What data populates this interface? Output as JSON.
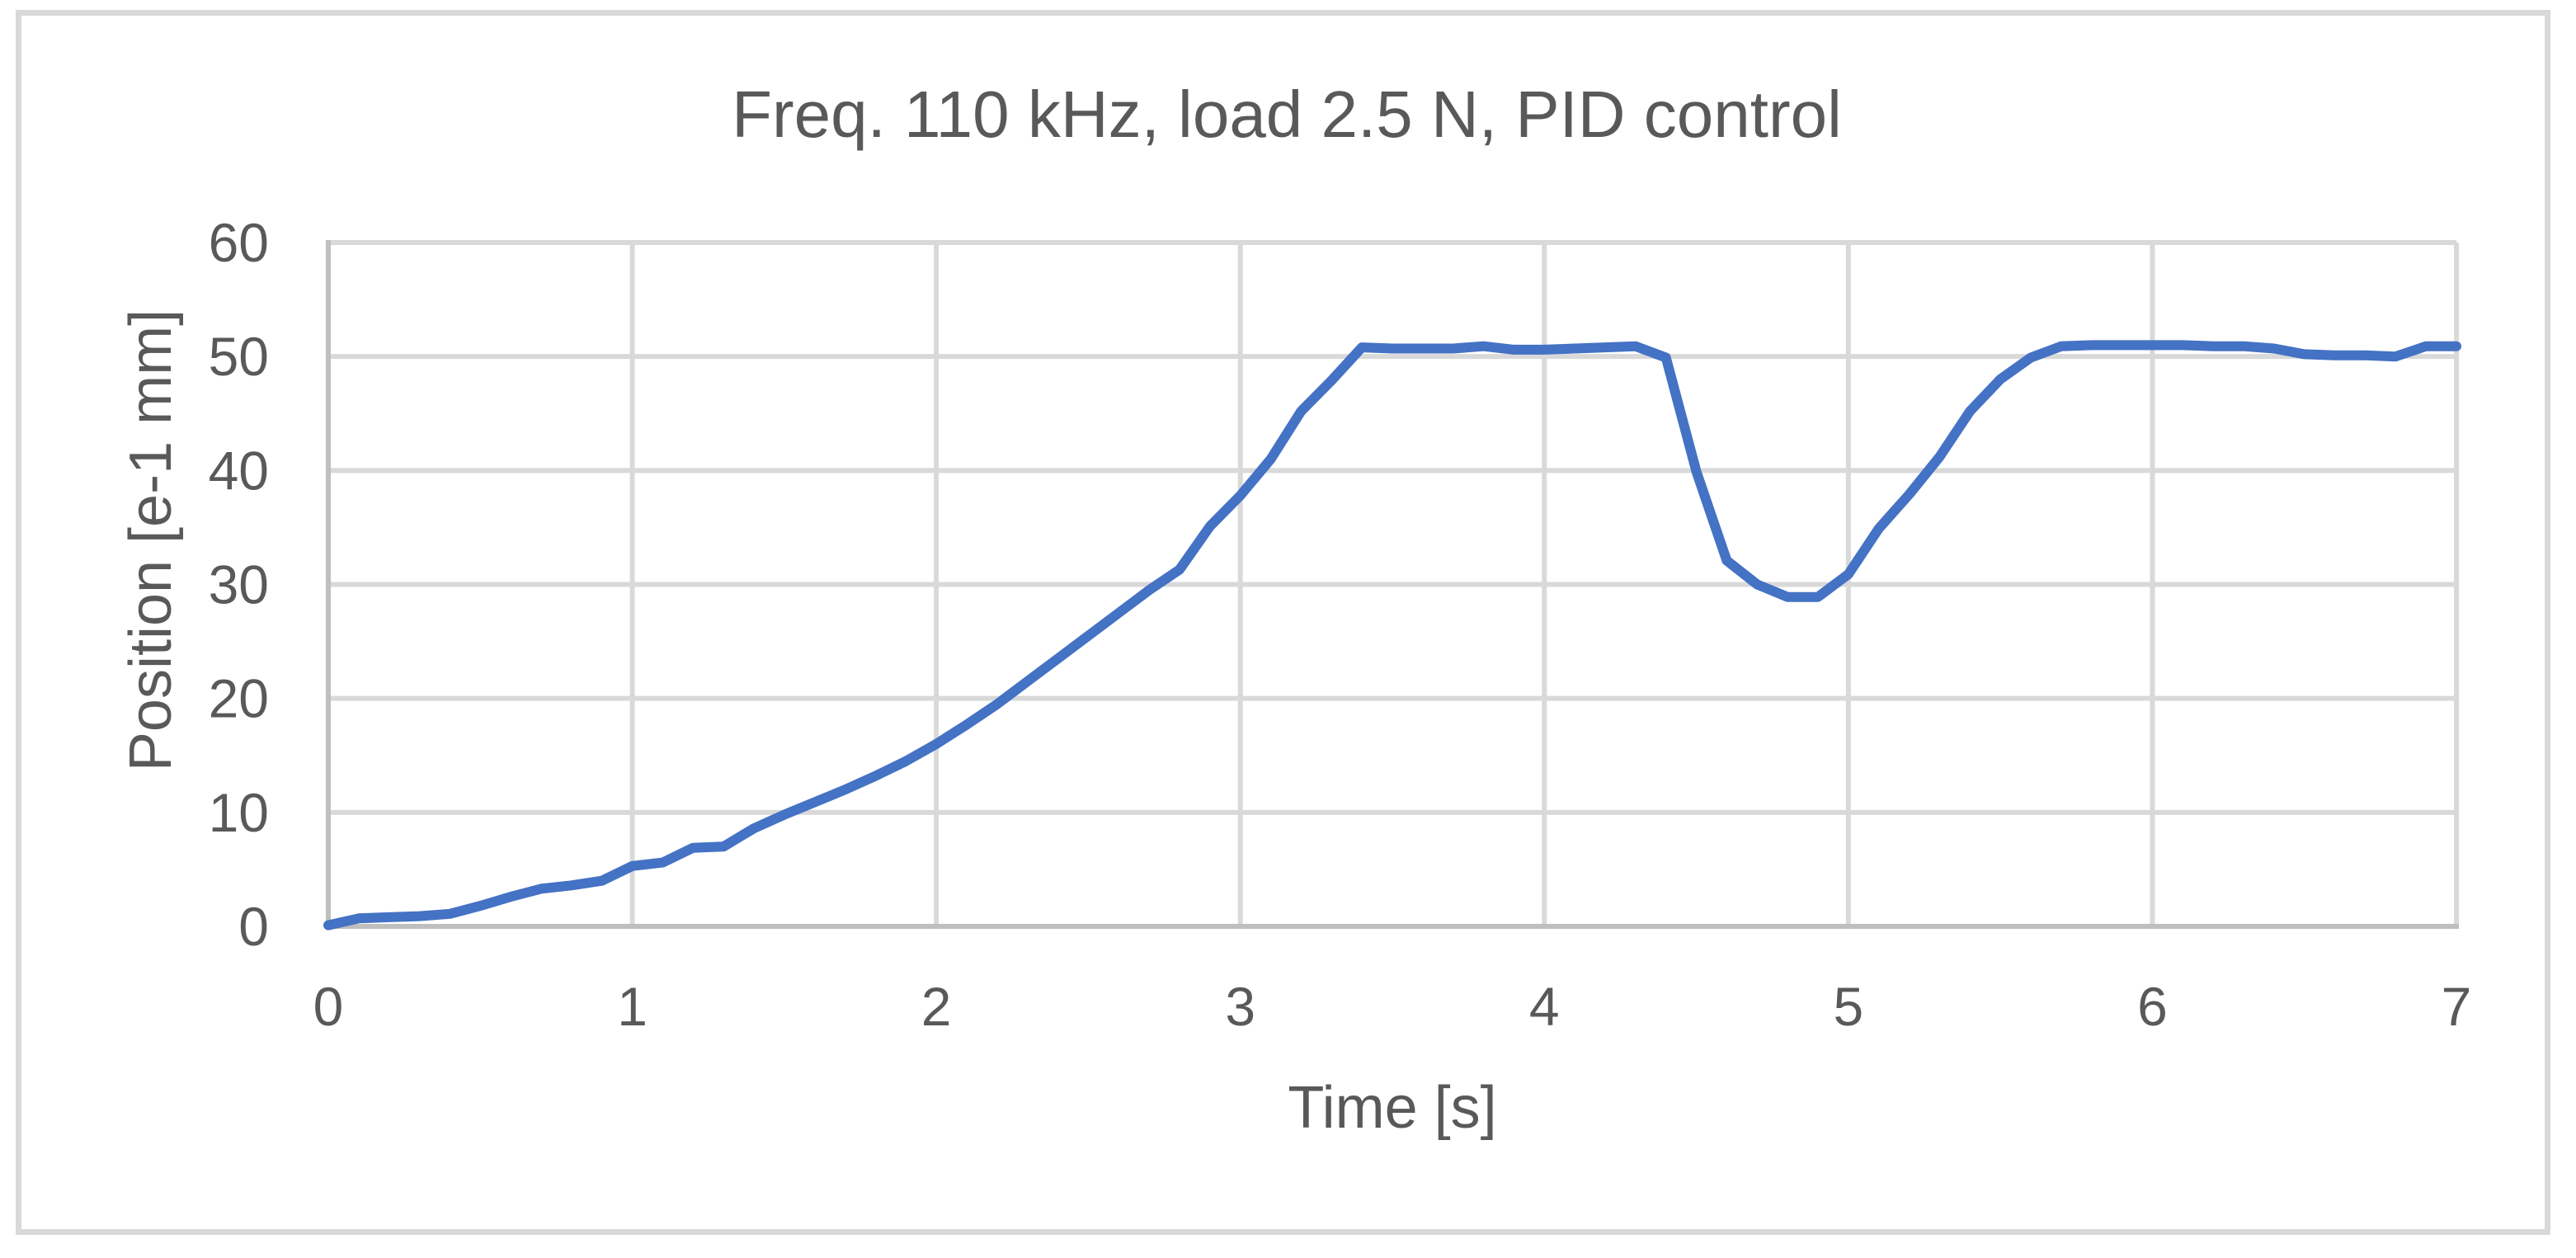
{
  "chart_data": {
    "type": "line",
    "title": "Freq. 110 kHz, load 2.5 N, PID control",
    "xlabel": "Time [s]",
    "ylabel": "Position [e-1 mm]",
    "xlim": [
      0,
      7
    ],
    "ylim": [
      0,
      60
    ],
    "x_ticks": [
      0,
      1,
      2,
      3,
      4,
      5,
      6,
      7
    ],
    "y_ticks": [
      0,
      10,
      20,
      30,
      40,
      50,
      60
    ],
    "grid": true,
    "legend": null,
    "series": [
      {
        "name": "Position",
        "color": "#4472C4",
        "x": [
          0,
          0.1,
          0.2,
          0.3,
          0.4,
          0.5,
          0.6,
          0.7,
          0.8,
          0.9,
          1.0,
          1.1,
          1.2,
          1.3,
          1.4,
          1.5,
          1.6,
          1.7,
          1.8,
          1.9,
          2.0,
          2.1,
          2.2,
          2.3,
          2.4,
          2.5,
          2.6,
          2.7,
          2.8,
          2.9,
          3.0,
          3.1,
          3.2,
          3.3,
          3.4,
          3.5,
          3.6,
          3.7,
          3.8,
          3.9,
          4.0,
          4.1,
          4.2,
          4.3,
          4.4,
          4.5,
          4.6,
          4.7,
          4.8,
          4.9,
          5.0,
          5.1,
          5.2,
          5.3,
          5.4,
          5.5,
          5.6,
          5.7,
          5.8,
          5.9,
          6.0,
          6.1,
          6.2,
          6.3,
          6.4,
          6.5,
          6.6,
          6.7,
          6.8,
          6.9,
          7.0
        ],
        "y": [
          0.1,
          0.7,
          0.8,
          0.9,
          1.1,
          1.8,
          2.6,
          3.3,
          3.6,
          4.0,
          5.3,
          5.6,
          6.9,
          7.0,
          8.6,
          9.8,
          10.9,
          12.0,
          13.2,
          14.5,
          16.0,
          17.7,
          19.5,
          21.5,
          23.5,
          25.5,
          27.5,
          29.5,
          31.3,
          35.1,
          37.8,
          41.0,
          45.2,
          47.9,
          50.8,
          50.7,
          50.7,
          50.7,
          50.9,
          50.6,
          50.6,
          50.7,
          50.8,
          50.9,
          49.9,
          39.9,
          32.1,
          30.0,
          28.9,
          28.9,
          30.9,
          34.9,
          37.9,
          41.2,
          45.2,
          48.0,
          49.9,
          50.9,
          51.0,
          51.0,
          51.0,
          51.0,
          50.9,
          50.9,
          50.7,
          50.2,
          50.1,
          50.1,
          50.0,
          50.9,
          50.9
        ]
      }
    ]
  },
  "style": {
    "text_color": "#595959",
    "grid_color": "#d9d9d9",
    "axis_color": "#bfbfbf",
    "frame_color": "#d9d9d9"
  }
}
